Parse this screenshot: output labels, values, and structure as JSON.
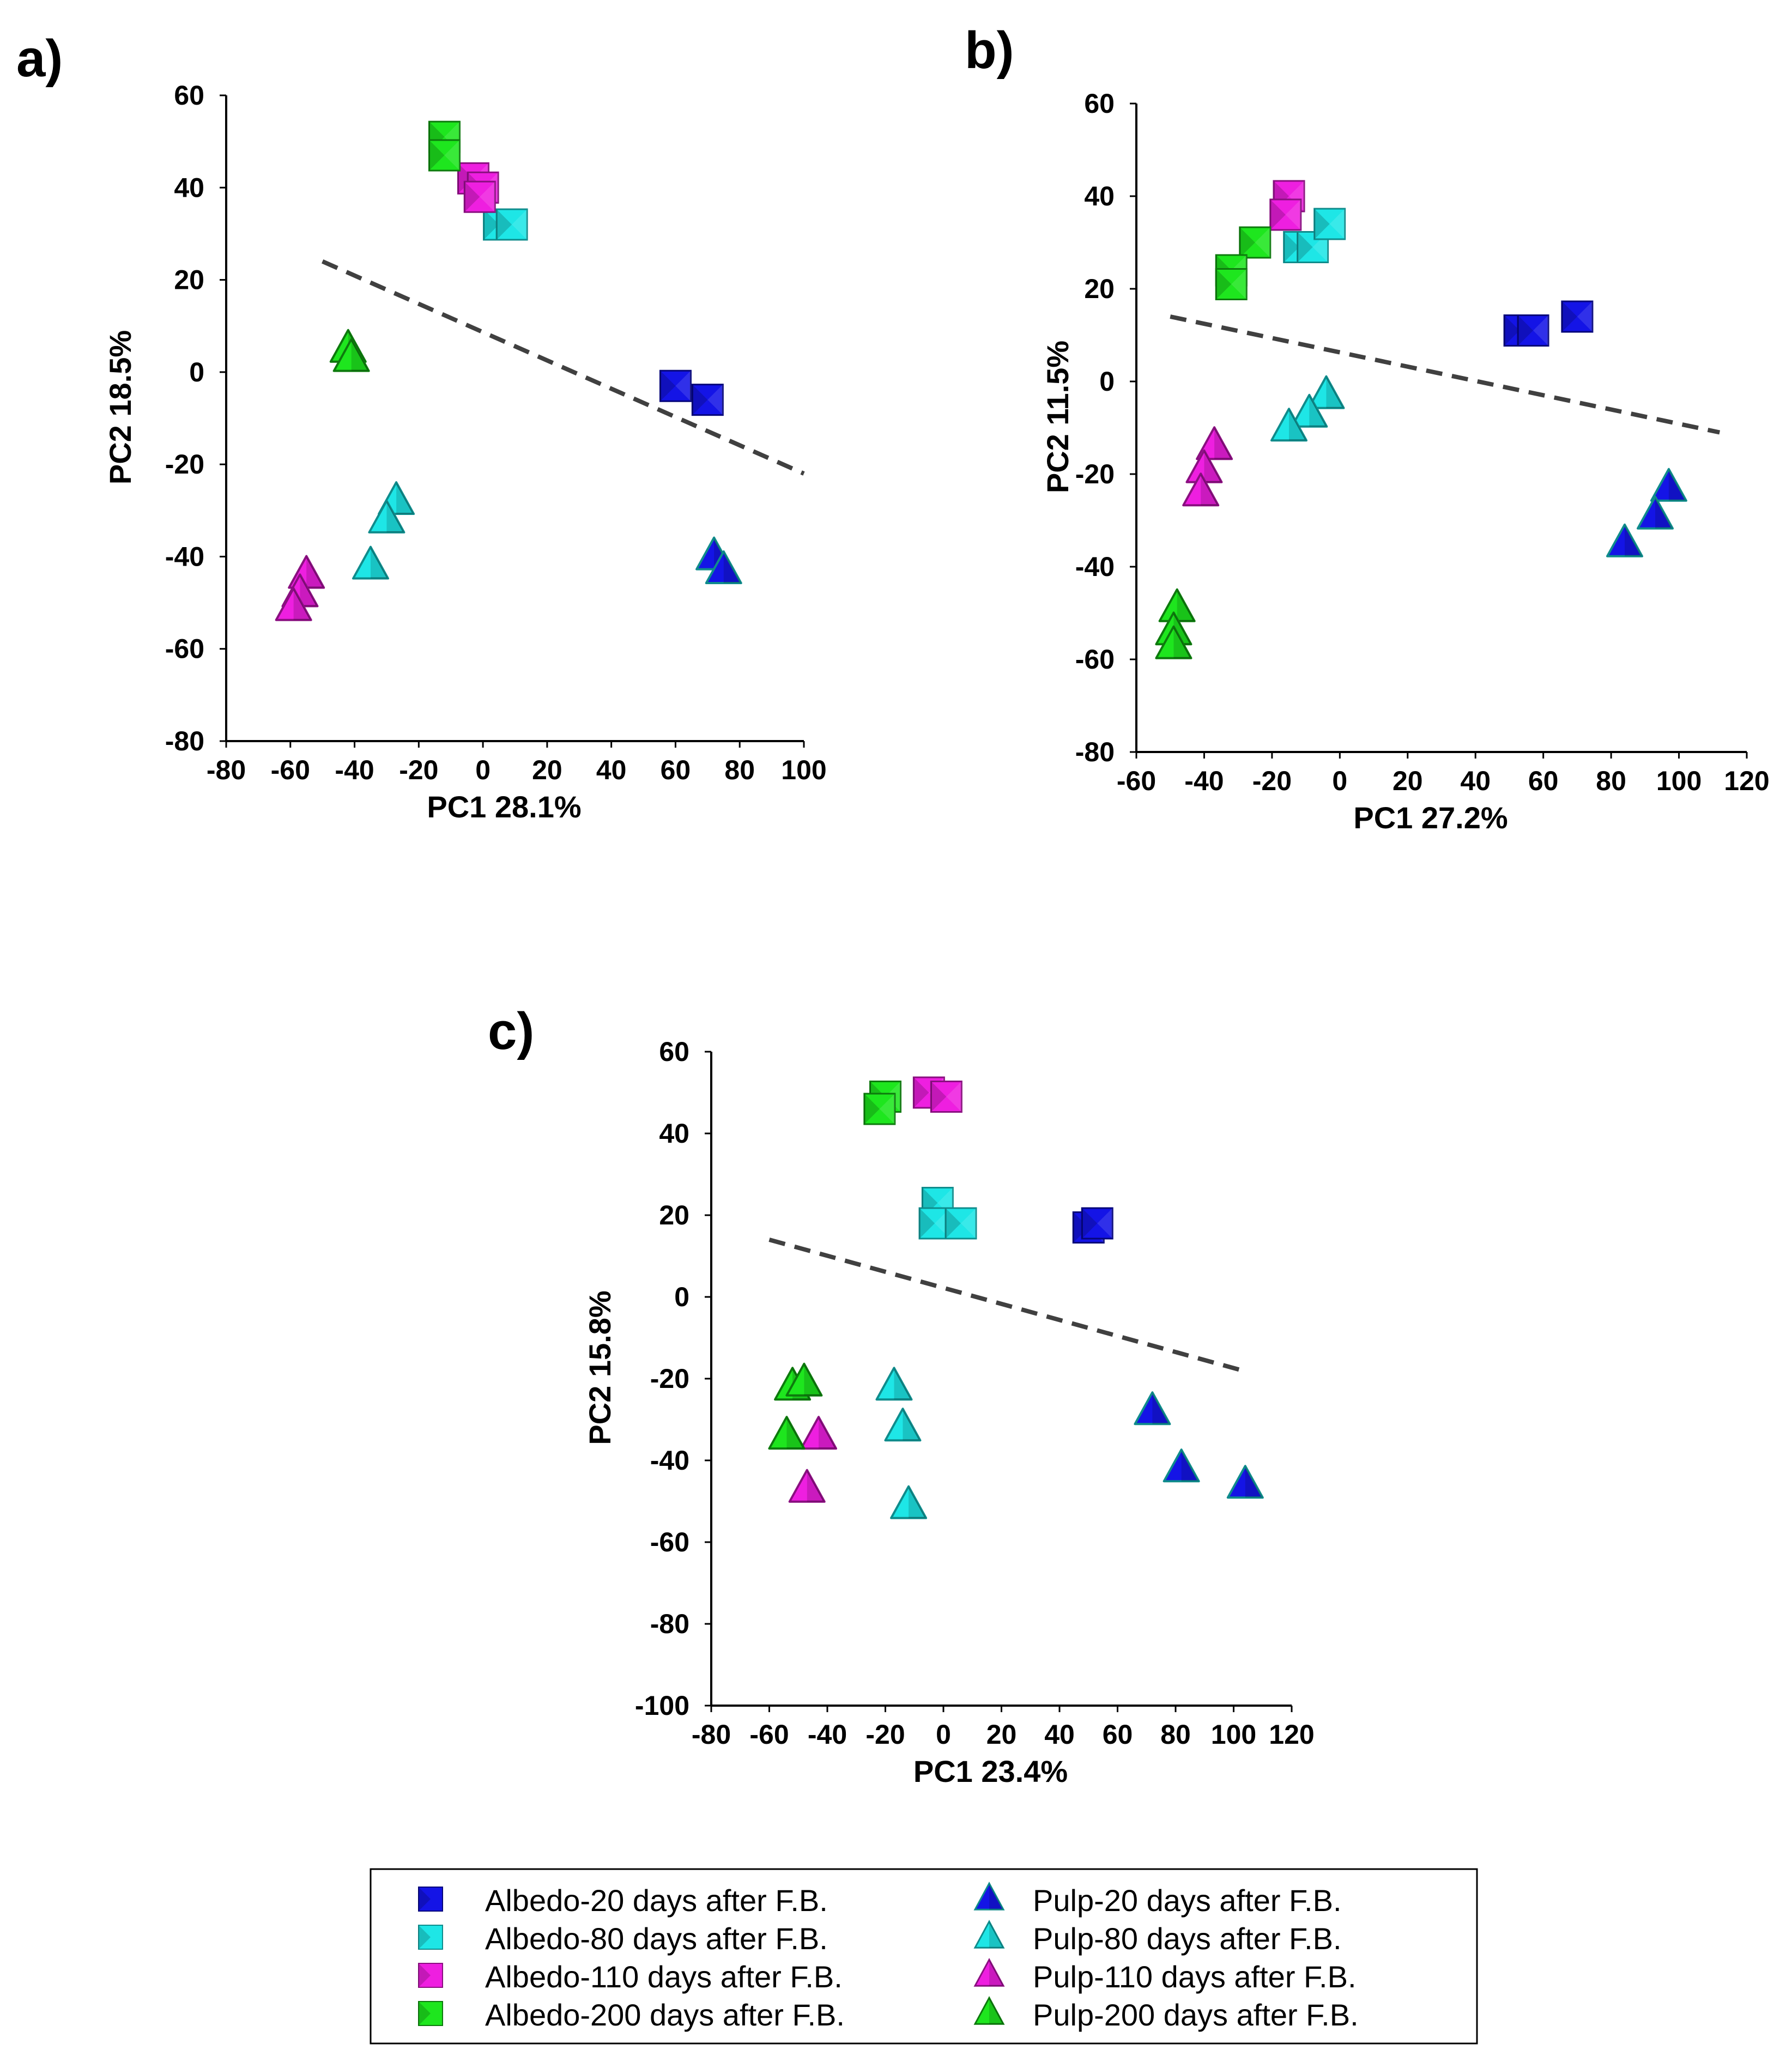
{
  "series_styles": [
    {
      "key": "a20",
      "shape": "square",
      "color": "#1414e6",
      "dark": "#06067a"
    },
    {
      "key": "a80",
      "shape": "square",
      "color": "#1ee6e6",
      "dark": "#0f8c8c"
    },
    {
      "key": "a110",
      "shape": "square",
      "color": "#ee1fe0",
      "dark": "#8a0f80"
    },
    {
      "key": "a200",
      "shape": "square",
      "color": "#1ee61e",
      "dark": "#0d7a0d"
    },
    {
      "key": "p20",
      "shape": "triangle",
      "color": "#1414e6",
      "dark": "#0f8c8c"
    },
    {
      "key": "p80",
      "shape": "triangle",
      "color": "#1ee6e6",
      "dark": "#0f8c8c"
    },
    {
      "key": "p110",
      "shape": "triangle",
      "color": "#ee1fe0",
      "dark": "#8a0f80"
    },
    {
      "key": "p200",
      "shape": "triangle",
      "color": "#1ee61e",
      "dark": "#0d7a0d"
    }
  ],
  "legend": {
    "items": [
      {
        "key": "a20",
        "label": "Albedo-20 days after F.B."
      },
      {
        "key": "a80",
        "label": "Albedo-80 days after F.B."
      },
      {
        "key": "a110",
        "label": "Albedo-110 days after F.B."
      },
      {
        "key": "a200",
        "label": "Albedo-200 days after F.B."
      },
      {
        "key": "p20",
        "label": "Pulp-20 days after F.B."
      },
      {
        "key": "p80",
        "label": "Pulp-80 days after F.B."
      },
      {
        "key": "p110",
        "label": "Pulp-110 days after F.B."
      },
      {
        "key": "p200",
        "label": "Pulp-200 days after F.B."
      }
    ]
  },
  "chart_data": [
    {
      "type": "scatter",
      "panel_label": "a)",
      "xlabel": "PC1 28.1%",
      "ylabel": "PC2 18.5%",
      "xlim": [
        -80,
        100
      ],
      "ylim": [
        -80,
        60
      ],
      "xticks": [
        -80,
        -60,
        -40,
        -20,
        0,
        20,
        40,
        60,
        80,
        100
      ],
      "yticks": [
        -80,
        -60,
        -40,
        -20,
        0,
        20,
        40,
        60
      ],
      "divider": [
        [
          -50,
          24
        ],
        [
          100,
          -22
        ]
      ],
      "series": [
        {
          "key": "a20",
          "points": [
            [
              60,
              -3
            ],
            [
              70,
              -6
            ]
          ]
        },
        {
          "key": "a80",
          "points": [
            [
              5,
              32
            ],
            [
              9,
              32
            ]
          ]
        },
        {
          "key": "a110",
          "points": [
            [
              -3,
              42
            ],
            [
              0,
              40
            ],
            [
              -1,
              38
            ]
          ]
        },
        {
          "key": "a200",
          "points": [
            [
              -12,
              51
            ],
            [
              -12,
              47
            ]
          ]
        },
        {
          "key": "p20",
          "points": [
            [
              72,
              -40
            ],
            [
              75,
              -43
            ]
          ]
        },
        {
          "key": "p80",
          "points": [
            [
              -27,
              -28
            ],
            [
              -30,
              -32
            ],
            [
              -35,
              -42
            ]
          ]
        },
        {
          "key": "p110",
          "points": [
            [
              -55,
              -44
            ],
            [
              -57,
              -48
            ],
            [
              -59,
              -51
            ]
          ]
        },
        {
          "key": "p200",
          "points": [
            [
              -42,
              5
            ],
            [
              -41,
              3
            ]
          ]
        }
      ]
    },
    {
      "type": "scatter",
      "panel_label": "b)",
      "xlabel": "PC1 27.2%",
      "ylabel": "PC2 11.5%",
      "xlim": [
        -60,
        120
      ],
      "ylim": [
        -80,
        60
      ],
      "xticks": [
        -60,
        -40,
        -20,
        0,
        20,
        40,
        60,
        80,
        100,
        120
      ],
      "yticks": [
        -80,
        -60,
        -40,
        -20,
        0,
        20,
        40,
        60
      ],
      "divider": [
        [
          -50,
          14
        ],
        [
          112,
          -11
        ]
      ],
      "series": [
        {
          "key": "a20",
          "points": [
            [
              53,
              11
            ],
            [
              57,
              11
            ],
            [
              70,
              14
            ]
          ]
        },
        {
          "key": "a80",
          "points": [
            [
              -12,
              29
            ],
            [
              -8,
              29
            ],
            [
              -3,
              34
            ]
          ]
        },
        {
          "key": "a110",
          "points": [
            [
              -15,
              40
            ],
            [
              -16,
              36
            ]
          ]
        },
        {
          "key": "a200",
          "points": [
            [
              -25,
              30
            ],
            [
              -32,
              24
            ],
            [
              -32,
              21
            ]
          ]
        },
        {
          "key": "p20",
          "points": [
            [
              97,
              -23
            ],
            [
              93,
              -29
            ],
            [
              84,
              -35
            ]
          ]
        },
        {
          "key": "p80",
          "points": [
            [
              -4,
              -3
            ],
            [
              -9,
              -7
            ],
            [
              -15,
              -10
            ]
          ]
        },
        {
          "key": "p110",
          "points": [
            [
              -37,
              -14
            ],
            [
              -40,
              -19
            ],
            [
              -41,
              -24
            ]
          ]
        },
        {
          "key": "p200",
          "points": [
            [
              -48,
              -49
            ],
            [
              -49,
              -54
            ],
            [
              -49,
              -57
            ]
          ]
        }
      ]
    },
    {
      "type": "scatter",
      "panel_label": "c)",
      "xlabel": "PC1 23.4%",
      "ylabel": "PC2 15.8%",
      "xlim": [
        -80,
        120
      ],
      "ylim": [
        -100,
        60
      ],
      "xticks": [
        -80,
        -60,
        -40,
        -20,
        0,
        20,
        40,
        60,
        80,
        100,
        120
      ],
      "yticks": [
        -100,
        -80,
        -60,
        -40,
        -20,
        0,
        20,
        40,
        60
      ],
      "divider": [
        [
          -60,
          14
        ],
        [
          103,
          -18
        ]
      ],
      "series": [
        {
          "key": "a20",
          "points": [
            [
              50,
              17
            ],
            [
              53,
              18
            ]
          ]
        },
        {
          "key": "a80",
          "points": [
            [
              -2,
              23
            ],
            [
              -3,
              18
            ],
            [
              6,
              18
            ]
          ]
        },
        {
          "key": "a110",
          "points": [
            [
              -5,
              50
            ],
            [
              1,
              49
            ]
          ]
        },
        {
          "key": "a200",
          "points": [
            [
              -20,
              49
            ],
            [
              -22,
              46
            ]
          ]
        },
        {
          "key": "p20",
          "points": [
            [
              72,
              -28
            ],
            [
              82,
              -42
            ],
            [
              104,
              -46
            ]
          ]
        },
        {
          "key": "p80",
          "points": [
            [
              -17,
              -22
            ],
            [
              -14,
              -32
            ],
            [
              -12,
              -51
            ]
          ]
        },
        {
          "key": "p110",
          "points": [
            [
              -43,
              -34
            ],
            [
              -47,
              -47
            ]
          ]
        },
        {
          "key": "p200",
          "points": [
            [
              -52,
              -22
            ],
            [
              -48,
              -21
            ],
            [
              -54,
              -34
            ]
          ]
        }
      ]
    }
  ]
}
